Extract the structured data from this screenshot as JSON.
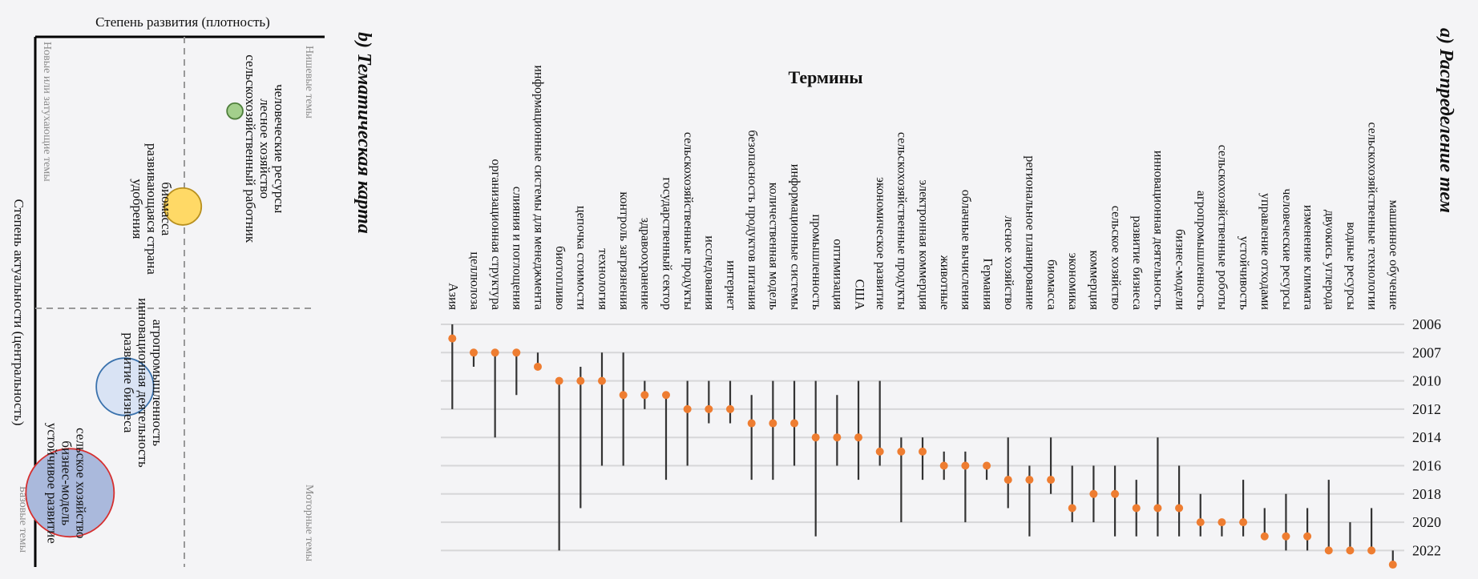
{
  "chart_data": [
    {
      "type": "scatter",
      "title": "a) Распределение тем",
      "xlabel": "Термины",
      "ylabel": "",
      "y_ticks": [
        2006,
        2007,
        2010,
        2012,
        2014,
        2016,
        2018,
        2020,
        2022
      ],
      "y_tick_labels": [
        "2006",
        "2007",
        "2010",
        "2012",
        "2014",
        "2016",
        "2018",
        "2020",
        "2022"
      ],
      "grid": true,
      "colors": {
        "point": "#ee7d31",
        "range": "#333333",
        "grid": "#d6d6d8"
      },
      "points": [
        {
          "term": "Азия",
          "year": 2006.5,
          "start": 2006,
          "end": 2012
        },
        {
          "term": "целлюлоза",
          "year": 2007,
          "start": 2007,
          "end": 2008.5
        },
        {
          "term": "организационная структура",
          "year": 2007,
          "start": 2007,
          "end": 2014
        },
        {
          "term": "слияния и поглощения",
          "year": 2007,
          "start": 2007,
          "end": 2011
        },
        {
          "term": "информационные системы для менеджмента",
          "year": 2008.5,
          "start": 2007,
          "end": 2008.5
        },
        {
          "term": "биотопливо",
          "year": 2010,
          "start": 2010,
          "end": 2022
        },
        {
          "term": "цепочка стоимости",
          "year": 2010,
          "start": 2008.5,
          "end": 2019
        },
        {
          "term": "технология",
          "year": 2010,
          "start": 2007,
          "end": 2016
        },
        {
          "term": "контроль загрязнения",
          "year": 2011,
          "start": 2007,
          "end": 2016
        },
        {
          "term": "здравоохранение",
          "year": 2011,
          "start": 2010,
          "end": 2012
        },
        {
          "term": "государственный сектор",
          "year": 2011,
          "start": 2011,
          "end": 2017
        },
        {
          "term": "сельскохозяйственные продукты",
          "year": 2012,
          "start": 2010,
          "end": 2016
        },
        {
          "term": "исследования",
          "year": 2012,
          "start": 2010,
          "end": 2013
        },
        {
          "term": "интернет",
          "year": 2012,
          "start": 2010,
          "end": 2013
        },
        {
          "term": "безопасность продуктов питания",
          "year": 2013,
          "start": 2011,
          "end": 2017
        },
        {
          "term": "количественная модель",
          "year": 2013,
          "start": 2010,
          "end": 2017
        },
        {
          "term": "информационные системы",
          "year": 2013,
          "start": 2010,
          "end": 2016
        },
        {
          "term": "промышленность",
          "year": 2014,
          "start": 2010,
          "end": 2021
        },
        {
          "term": "оптимизация",
          "year": 2014,
          "start": 2011,
          "end": 2016
        },
        {
          "term": "США",
          "year": 2014,
          "start": 2010,
          "end": 2017
        },
        {
          "term": "экономическое развитие",
          "year": 2015,
          "start": 2010,
          "end": 2016
        },
        {
          "term": "сельскохозяйственные продукты",
          "year": 2015,
          "start": 2014,
          "end": 2020
        },
        {
          "term": "электронная коммерция",
          "year": 2015,
          "start": 2014,
          "end": 2017
        },
        {
          "term": "животные",
          "year": 2016,
          "start": 2015,
          "end": 2017
        },
        {
          "term": "облачные вычисления",
          "year": 2016,
          "start": 2015,
          "end": 2020
        },
        {
          "term": "Германия",
          "year": 2016,
          "start": 2016,
          "end": 2017
        },
        {
          "term": "лесное хозяйство",
          "year": 2017,
          "start": 2014,
          "end": 2019
        },
        {
          "term": "региональное планирование",
          "year": 2017,
          "start": 2016,
          "end": 2021
        },
        {
          "term": "биомасса",
          "year": 2017,
          "start": 2014,
          "end": 2018
        },
        {
          "term": "экономика",
          "year": 2019,
          "start": 2016,
          "end": 2020
        },
        {
          "term": "коммерция",
          "year": 2018,
          "start": 2016,
          "end": 2020
        },
        {
          "term": "сельское хозяйство",
          "year": 2018,
          "start": 2016,
          "end": 2021
        },
        {
          "term": "развитие бизнеса",
          "year": 2019,
          "start": 2017,
          "end": 2021
        },
        {
          "term": "инновационная деятельность",
          "year": 2019,
          "start": 2014,
          "end": 2021
        },
        {
          "term": "бизнес-модели",
          "year": 2019,
          "start": 2016,
          "end": 2021
        },
        {
          "term": "агропромышленность",
          "year": 2020,
          "start": 2018,
          "end": 2021
        },
        {
          "term": "сельскохозяйственные роботы",
          "year": 2020,
          "start": 2020,
          "end": 2021
        },
        {
          "term": "устойчивость",
          "year": 2020,
          "start": 2017,
          "end": 2021
        },
        {
          "term": "управление отходами",
          "year": 2021,
          "start": 2019,
          "end": 2021
        },
        {
          "term": "человеческие ресурсы",
          "year": 2021,
          "start": 2018,
          "end": 2022
        },
        {
          "term": "изменение климата",
          "year": 2021,
          "start": 2019,
          "end": 2022
        },
        {
          "term": "двуокись углерода",
          "year": 2022,
          "start": 2017,
          "end": 2022
        },
        {
          "term": "водные ресурсы",
          "year": 2022,
          "start": 2020,
          "end": 2022
        },
        {
          "term": "сельскохозяйственные технологии",
          "year": 2022,
          "start": 2019,
          "end": 2022
        },
        {
          "term": "машинное обучение",
          "year": 2023,
          "start": 2022,
          "end": 2023
        }
      ]
    },
    {
      "type": "scatter",
      "title": "b) Тематическая карта",
      "xlabel": "Степень развития (плотность)",
      "ylabel": "Степень актуальности (центральность)",
      "quadrants": {
        "emerging_declining": "Новые или затухающие темы",
        "niche": "Нишевые темы",
        "basic": "Базовые темы",
        "motor": "Моторные темы"
      },
      "clusters": [
        {
          "terms": [
            "человеческие ресурсы",
            "лесное хозяйство",
            "сельскохозяйственный работник"
          ],
          "density": 0.69,
          "centrality": 0.14,
          "size": 0.18,
          "fill": "#a3cf8c",
          "stroke": "#4f7f3c"
        },
        {
          "terms": [
            "биомасса",
            "развивающаяся страна",
            "удобрения"
          ],
          "density": 0.51,
          "centrality": 0.32,
          "size": 0.42,
          "fill": "#ffd966",
          "stroke": "#b8901f"
        },
        {
          "terms": [
            "агропромышленность",
            "инновационная деятельность",
            "развитие бизнеса"
          ],
          "density": 0.31,
          "centrality": 0.66,
          "size": 0.65,
          "fill": "#d9e3f4",
          "stroke": "#3a72ad"
        },
        {
          "terms": [
            "сельское хозяйство",
            "бизнес-модель",
            "устойчивое развитие"
          ],
          "density": 0.12,
          "centrality": 0.86,
          "size": 1.0,
          "fill": "#aab9dc",
          "stroke": "#d62f2f"
        }
      ]
    }
  ]
}
